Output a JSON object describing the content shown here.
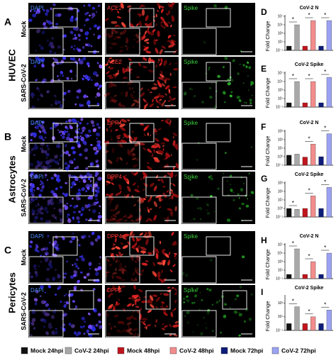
{
  "panels": [
    {
      "letter": "A",
      "cell": "HUVEC",
      "rows": [
        {
          "condition": "Mock",
          "stains": [
            "DAPI",
            "ACE2",
            "Spike"
          ]
        },
        {
          "condition": "SARS-CoV-2",
          "stains": [
            "DAPI",
            "ACE2",
            "Spike"
          ]
        }
      ]
    },
    {
      "letter": "B",
      "cell": "Astrocytes",
      "rows": [
        {
          "condition": "Mock",
          "stains": [
            "DAPI",
            "DPP4",
            "Spike"
          ]
        },
        {
          "condition": "SARS-CoV-2",
          "stains": [
            "DAPI",
            "DPP4",
            "Spike"
          ]
        }
      ]
    },
    {
      "letter": "C",
      "cell": "Pericytes",
      "rows": [
        {
          "condition": "Mock",
          "stains": [
            "DAPI",
            "DPP4",
            "Spike"
          ]
        },
        {
          "condition": "SARS-CoV-2",
          "stains": [
            "DAPI",
            "DPP4",
            "Spike"
          ]
        }
      ]
    }
  ],
  "legend": [
    {
      "name": "Mock 24hpi",
      "color": "#111111"
    },
    {
      "name": "CoV-2 24hpi",
      "color": "#a8a8a8"
    },
    {
      "name": "Mock 48hpi",
      "color": "#c0141c"
    },
    {
      "name": "CoV-2 48hpi",
      "color": "#f28c8c"
    },
    {
      "name": "Mock 72hpi",
      "color": "#0c1c78"
    },
    {
      "name": "CoV-2 72hpi",
      "color": "#9ca2f2"
    }
  ],
  "chart_data": [
    {
      "type": "bar",
      "letter": "D",
      "title": "CoV-2 N",
      "y_label": "Fold Change",
      "log_scale": true,
      "ylim": [
        0.1,
        10000000
      ],
      "yticks": [
        {
          "value": 0.1,
          "label": "10⁻¹"
        },
        {
          "value": 10,
          "label": "10¹"
        },
        {
          "value": 1000,
          "label": "10³"
        },
        {
          "value": 100000,
          "label": "10⁵"
        },
        {
          "value": 10000000,
          "label": "10⁷"
        }
      ],
      "values": [
        1,
        100000,
        1,
        1000000,
        1,
        1000000
      ],
      "annotations": [
        "*",
        "*",
        "*"
      ]
    },
    {
      "type": "bar",
      "letter": "E",
      "title": "CoV-2 Spike",
      "y_label": "Fold Change",
      "log_scale": true,
      "ylim": [
        0.1,
        10000000
      ],
      "yticks": [
        {
          "value": 0.1,
          "label": "10⁻¹"
        },
        {
          "value": 10,
          "label": "10¹"
        },
        {
          "value": 1000,
          "label": "10³"
        },
        {
          "value": 100000,
          "label": "10⁵"
        },
        {
          "value": 10000000,
          "label": "10⁷"
        }
      ],
      "values": [
        1,
        100000,
        1,
        100000,
        1,
        1000000
      ],
      "annotations": [
        "*",
        "*",
        "*"
      ]
    },
    {
      "type": "bar",
      "letter": "F",
      "title": "CoV-2 N",
      "y_label": "Fold Change",
      "log_scale": true,
      "ylim": [
        0.1,
        1000
      ],
      "yticks": [
        {
          "value": 0.1,
          "label": "10⁻¹"
        },
        {
          "value": 1,
          "label": "10⁰"
        },
        {
          "value": 10,
          "label": "10¹"
        },
        {
          "value": 100,
          "label": "10²"
        },
        {
          "value": 1000,
          "label": "10³"
        }
      ],
      "values": [
        1.5,
        2,
        0.9,
        30,
        1,
        500
      ],
      "annotations": [
        "*",
        "*"
      ]
    },
    {
      "type": "bar",
      "letter": "G",
      "title": "CoV-2 Spike",
      "y_label": "Fold Change",
      "log_scale": true,
      "ylim": [
        0.1,
        1000
      ],
      "yticks": [
        {
          "value": 0.1,
          "label": "10⁻¹"
        },
        {
          "value": 1,
          "label": "10⁰"
        },
        {
          "value": 10,
          "label": "10¹"
        },
        {
          "value": 100,
          "label": "10²"
        },
        {
          "value": 1000,
          "label": "10³"
        }
      ],
      "values": [
        1,
        0.8,
        1,
        30,
        1,
        300
      ],
      "annotations": [
        "*",
        "*",
        "*"
      ]
    },
    {
      "type": "bar",
      "letter": "H",
      "title": "CoV-2 N",
      "y_label": "Fold Change",
      "log_scale": true,
      "ylim": [
        0.1,
        10000000
      ],
      "yticks": [
        {
          "value": 0.1,
          "label": "10⁻¹"
        },
        {
          "value": 10,
          "label": "10¹"
        },
        {
          "value": 1000,
          "label": "10³"
        },
        {
          "value": 100000,
          "label": "10⁵"
        },
        {
          "value": 10000000,
          "label": "10⁷"
        }
      ],
      "values": [
        1,
        1000000,
        1,
        1000,
        1,
        100000
      ],
      "annotations": [
        "*",
        "*",
        "*"
      ]
    },
    {
      "type": "bar",
      "letter": "I",
      "title": "CoV-2 Spike",
      "y_label": "Fold Change",
      "log_scale": true,
      "ylim": [
        0.1,
        10000
      ],
      "yticks": [
        {
          "value": 0.1,
          "label": "10⁻¹"
        },
        {
          "value": 10,
          "label": "10¹"
        },
        {
          "value": 1000,
          "label": "10³"
        }
      ],
      "values": [
        1,
        300,
        1,
        10,
        1,
        100
      ],
      "annotations": [
        "*",
        "*",
        "*"
      ]
    }
  ]
}
